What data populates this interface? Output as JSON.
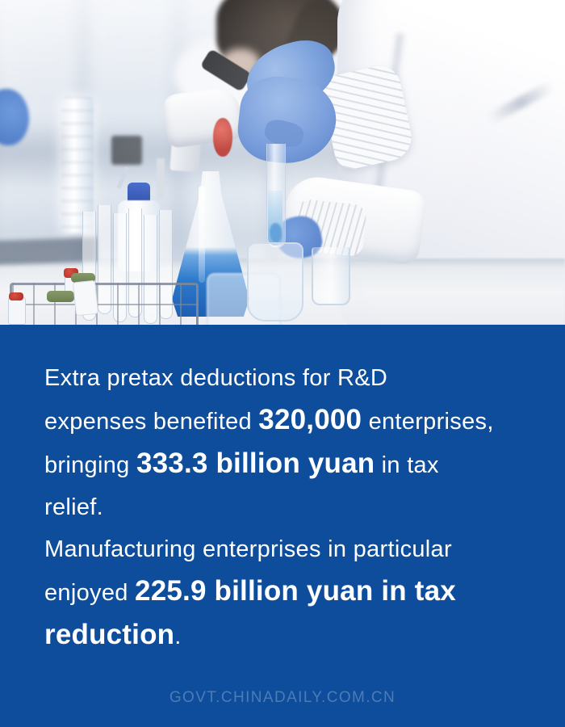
{
  "infographic": {
    "panel_color": "#0d4d9b",
    "text_color": "#ffffff",
    "highlight_numbers": [
      "320,000",
      "333.3 billion yuan",
      "225.9 billion yuan"
    ],
    "paragraphs": [
      {
        "segments": [
          {
            "text": "Extra pretax deductions for R&D",
            "bold": false,
            "break_after": true
          },
          {
            "text": "expenses benefited ",
            "bold": false
          },
          {
            "text": "320,000",
            "bold": true
          },
          {
            "text": " enterprises,",
            "bold": false,
            "break_after": true
          },
          {
            "text": "bringing ",
            "bold": false
          },
          {
            "text": "333.3 billion yuan",
            "bold": true
          },
          {
            "text": " in tax",
            "bold": false,
            "break_after": true
          },
          {
            "text": "relief.",
            "bold": false
          }
        ]
      },
      {
        "segments": [
          {
            "text": "Manufacturing enterprises in particular",
            "bold": false,
            "break_after": true
          },
          {
            "text": "enjoyed ",
            "bold": false
          },
          {
            "text": "225.9 billion yuan in tax",
            "bold": true,
            "break_after": true
          },
          {
            "text": "reduction",
            "bold": true
          },
          {
            "text": ".",
            "bold": false
          }
        ]
      }
    ],
    "footer": {
      "label": "GOVT.CHINADAILY.COM.CN",
      "color": "#4b7cb6"
    }
  },
  "photo": {
    "scene": "laboratory-research",
    "elements": [
      "researcher-white-lab-coat",
      "second-researcher-dark-hair",
      "blue-nitrile-gloves",
      "test-tube-with-blue-sample",
      "pipette-dropper",
      "microscope-with-red-knob",
      "erlenmeyer-flask-blue-liquid",
      "wash-bottle-blue-cap",
      "graduated-cylinder",
      "glass-test-tubes-in-wire-rack",
      "sample-vials-red-green-caps",
      "glass-beaker",
      "lab-bench",
      "blurred-window-background"
    ]
  }
}
